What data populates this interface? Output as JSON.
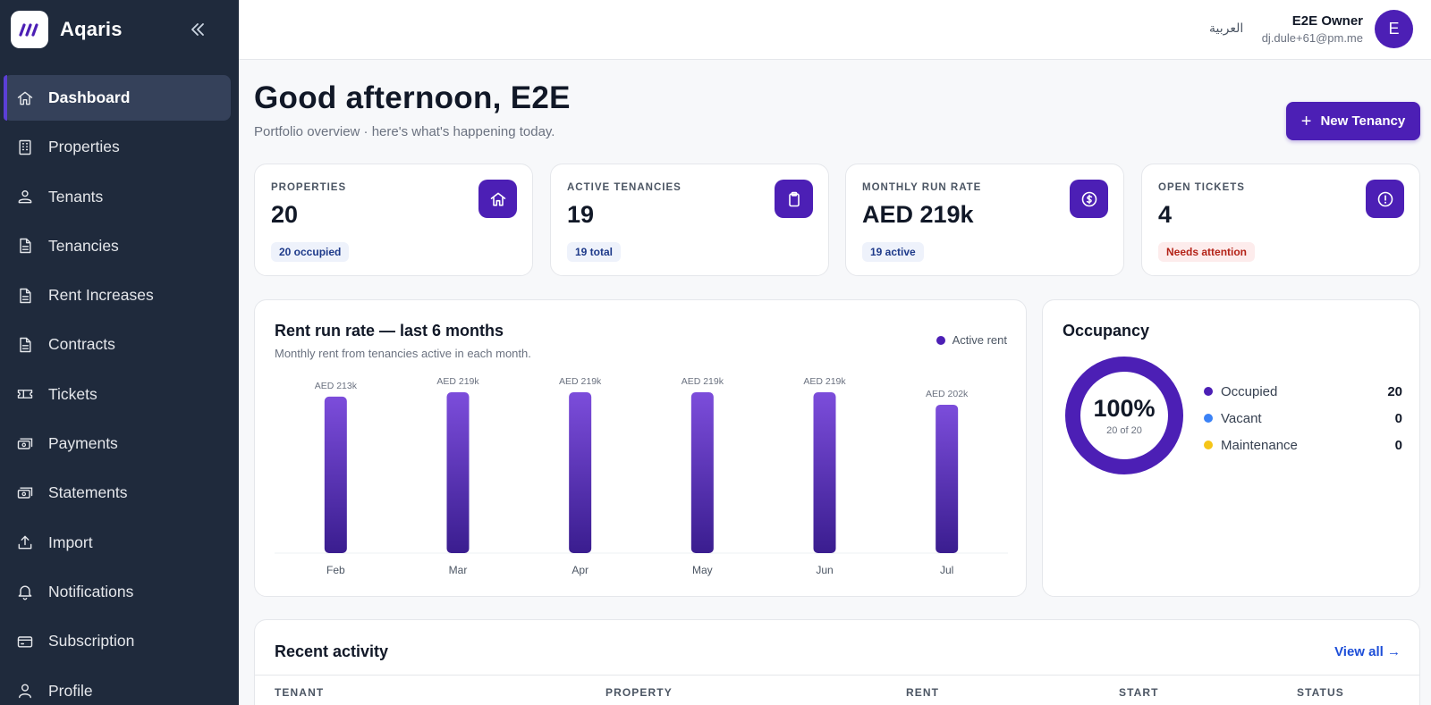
{
  "brand": {
    "name": "Aqaris",
    "logo_icon": "brand-logo-icon"
  },
  "sidebar": {
    "items": [
      {
        "label": "Dashboard",
        "icon": "home-icon",
        "active": true
      },
      {
        "label": "Properties",
        "icon": "building-icon"
      },
      {
        "label": "Tenants",
        "icon": "users-icon"
      },
      {
        "label": "Tenancies",
        "icon": "document-icon"
      },
      {
        "label": "Rent Increases",
        "icon": "document-icon"
      },
      {
        "label": "Contracts",
        "icon": "document-icon"
      },
      {
        "label": "Tickets",
        "icon": "ticket-icon"
      },
      {
        "label": "Payments",
        "icon": "cash-icon"
      },
      {
        "label": "Statements",
        "icon": "cash-icon"
      },
      {
        "label": "Import",
        "icon": "upload-icon"
      },
      {
        "label": "Notifications",
        "icon": "bell-icon"
      },
      {
        "label": "Subscription",
        "icon": "card-icon"
      },
      {
        "label": "Profile",
        "icon": "user-icon"
      }
    ]
  },
  "topbar": {
    "language": "العربية",
    "user_name": "E2E Owner",
    "user_email": "dj.dule+61@pm.me",
    "avatar_initial": "E"
  },
  "header": {
    "greeting": "Good afternoon, E2E",
    "subtitle": "Portfolio overview · here's what's happening today.",
    "new_button": "New Tenancy"
  },
  "stats": [
    {
      "label": "PROPERTIES",
      "value": "20",
      "badge": "20 occupied",
      "icon": "home-icon"
    },
    {
      "label": "ACTIVE TENANCIES",
      "value": "19",
      "badge": "19 total",
      "icon": "clipboard-icon"
    },
    {
      "label": "MONTHLY RUN RATE",
      "value": "AED 219k",
      "badge": "19 active",
      "icon": "dollar-icon"
    },
    {
      "label": "OPEN TICKETS",
      "value": "4",
      "badge": "Needs attention",
      "icon": "alert-icon",
      "badge_tone": "warn"
    }
  ],
  "rent_chart": {
    "title": "Rent run rate — last 6 months",
    "subtitle": "Monthly rent from tenancies active in each month.",
    "legend": "Active rent"
  },
  "chart_data": {
    "type": "bar",
    "title": "Rent run rate — last 6 months",
    "categories": [
      "Feb",
      "Mar",
      "Apr",
      "May",
      "Jun",
      "Jul"
    ],
    "values": [
      213,
      219,
      219,
      219,
      219,
      202
    ],
    "value_labels": [
      "AED 213k",
      "AED 219k",
      "AED 219k",
      "AED 219k",
      "AED 219k",
      "AED 202k"
    ],
    "series_name": "Active rent",
    "ylim": [
      0,
      219
    ],
    "grid": false,
    "legend": "top-right",
    "bar_color_top": "#7c4ddb",
    "bar_color_bottom": "#3a1d8f"
  },
  "occupancy": {
    "title": "Occupancy",
    "percent": "100%",
    "sub": "20 of 20",
    "fraction": 1.0,
    "rows": [
      {
        "label": "Occupied",
        "value": "20",
        "color": "#4c1fb5"
      },
      {
        "label": "Vacant",
        "value": "0",
        "color": "#3b82f6"
      },
      {
        "label": "Maintenance",
        "value": "0",
        "color": "#f5c518"
      }
    ]
  },
  "activity": {
    "title": "Recent activity",
    "view_all": "View all →",
    "columns": [
      "TENANT",
      "PROPERTY",
      "RENT",
      "START",
      "STATUS"
    ]
  },
  "colors": {
    "primary": "#4c1fb5",
    "sidebar": "#1f2a3c",
    "link": "#1d4ed8"
  }
}
